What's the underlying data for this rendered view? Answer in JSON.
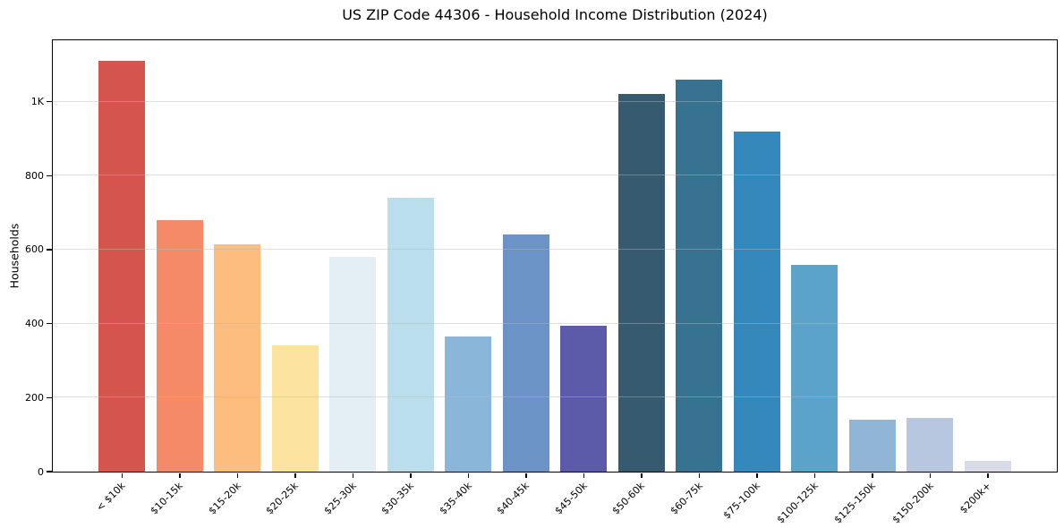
{
  "chart_data": {
    "type": "bar",
    "title": "US ZIP Code 44306 - Household Income Distribution (2024)",
    "xlabel": "",
    "ylabel": "Households",
    "categories": [
      "< $10k",
      "$10-15k",
      "$15-20k",
      "$20-25k",
      "$25-30k",
      "$30-35k",
      "$35-40k",
      "$40-45k",
      "$45-50k",
      "$50-60k",
      "$60-75k",
      "$75-100k",
      "$100-125k",
      "$125-150k",
      "$150-200k",
      "$200k+"
    ],
    "values": [
      1110,
      680,
      615,
      340,
      580,
      740,
      365,
      640,
      395,
      1020,
      1060,
      920,
      560,
      140,
      145,
      30
    ],
    "bar_colors": [
      "#d6544e",
      "#f58a68",
      "#fcbd7e",
      "#fde3a0",
      "#e4eff5",
      "#badeeb",
      "#8ab7d9",
      "#6b93c6",
      "#5c5baa",
      "#365a70",
      "#377390",
      "#3488bc",
      "#5ba3c9",
      "#90b5d5",
      "#b6c7df",
      "#dadbe8"
    ],
    "ylim": [
      0,
      1166
    ],
    "yticks": {
      "values": [
        0,
        200,
        400,
        600,
        800,
        1000
      ],
      "labels": [
        "0",
        "200",
        "400",
        "600",
        "800",
        "1K"
      ]
    },
    "grid": "horizontal, drawn over bars, light gray",
    "legend": "none",
    "spine_color": "#000000",
    "background_color": "#ffffff"
  }
}
